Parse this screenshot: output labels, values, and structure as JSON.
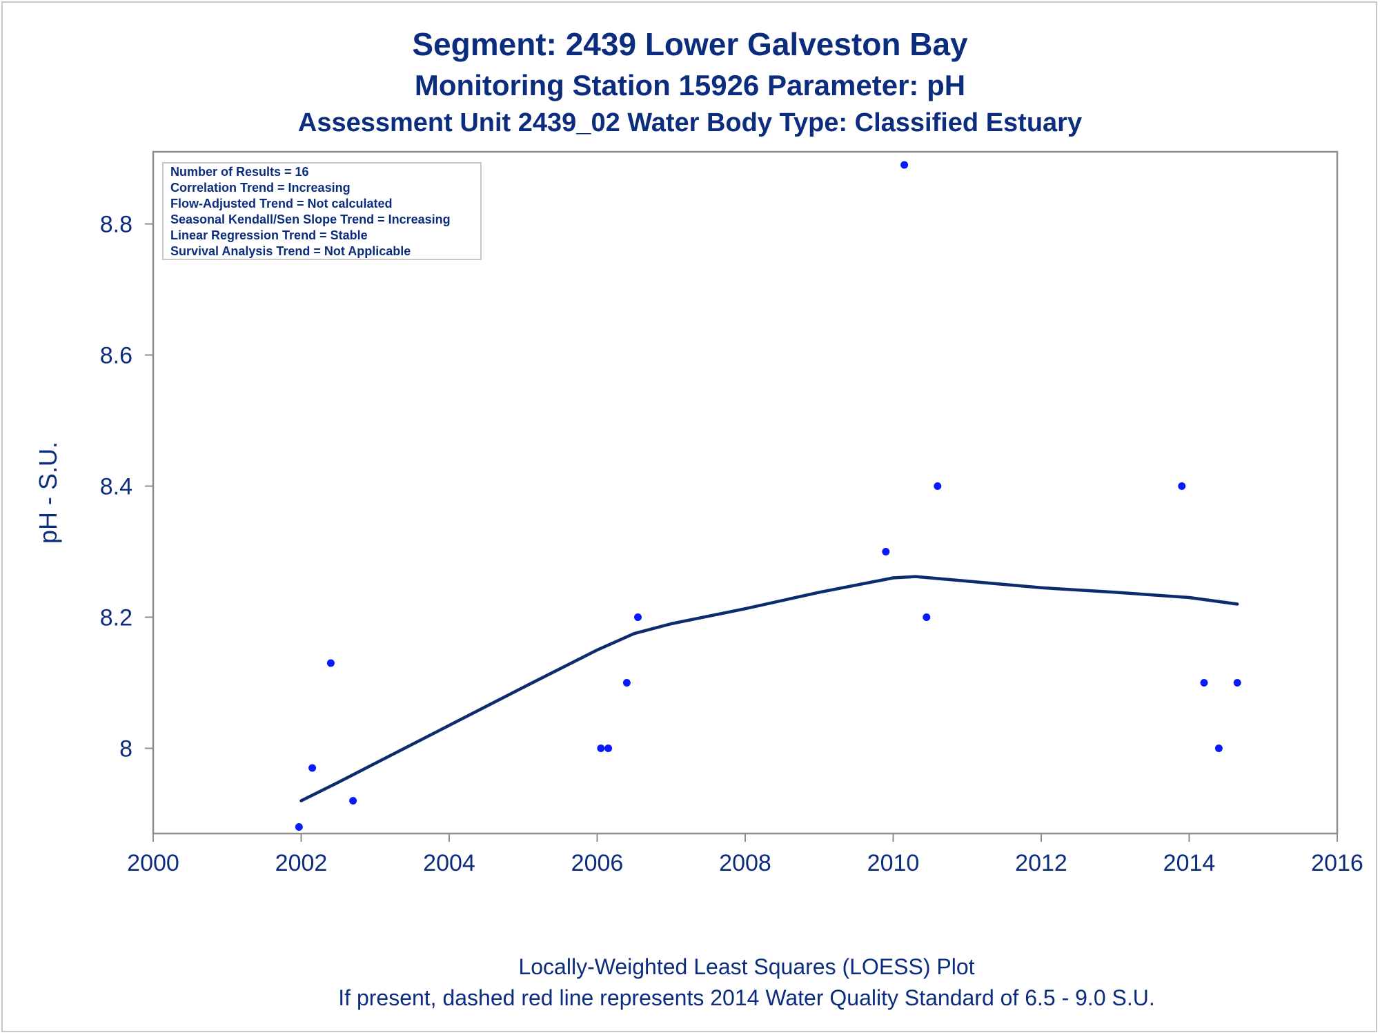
{
  "titles": {
    "line1": "Segment: 2439  Lower Galveston Bay",
    "line2": "Monitoring Station 15926 Parameter: pH",
    "line3": "Assessment Unit 2439_02   Water Body Type: Classified Estuary"
  },
  "stats_box": [
    "Number of Results = 16",
    "Correlation Trend = Increasing",
    "Flow-Adjusted Trend = Not calculated",
    "Seasonal Kendall/Sen Slope Trend = Increasing",
    "Linear Regression Trend = Stable",
    "Survival Analysis Trend = Not Applicable"
  ],
  "footnotes": [
    "Locally-Weighted Least Squares (LOESS) Plot",
    "If present, dashed red line represents 2014 Water Quality Standard of 6.5 - 9.0 S.U."
  ],
  "colors": {
    "title": "#0c2c7e",
    "axis_text": "#0c2c7e",
    "points": "#0a1aff",
    "loess": "#0c2c6e",
    "frame": "#8c8c8c",
    "footnote": "#0c2c7e"
  },
  "chart_data": {
    "type": "scatter",
    "xlabel": "",
    "ylabel": "pH - S.U.",
    "xlim": [
      2000,
      2016
    ],
    "ylim": [
      7.87,
      8.91
    ],
    "x_ticks": [
      2000,
      2002,
      2004,
      2006,
      2008,
      2010,
      2012,
      2014,
      2016
    ],
    "y_ticks": [
      8.0,
      8.2,
      8.4,
      8.6,
      8.8
    ],
    "x_tick_labels": [
      "2000",
      "2002",
      "2004",
      "2006",
      "2008",
      "2010",
      "2012",
      "2014",
      "2016"
    ],
    "y_tick_labels": [
      "8",
      "8.2",
      "8.4",
      "8.6",
      "8.8"
    ],
    "grid": false,
    "legend": "none",
    "series": [
      {
        "type": "scatter",
        "x": [
          2001.97,
          2002.15,
          2002.4,
          2002.7,
          2006.05,
          2006.15,
          2006.4,
          2006.55,
          2009.9,
          2010.15,
          2010.45,
          2010.6,
          2013.9,
          2014.2,
          2014.4,
          2014.65
        ],
        "y": [
          7.88,
          7.97,
          8.13,
          7.92,
          8.0,
          8.0,
          8.1,
          8.2,
          8.3,
          8.89,
          8.2,
          8.4,
          8.4,
          8.1,
          8.0,
          8.1
        ]
      },
      {
        "type": "line",
        "x": [
          2002.0,
          2002.5,
          2003.0,
          2004.0,
          2005.0,
          2006.0,
          2006.5,
          2007.0,
          2008.0,
          2009.0,
          2010.0,
          2010.3,
          2011.0,
          2012.0,
          2013.0,
          2014.0,
          2014.65
        ],
        "y": [
          7.92,
          7.948,
          7.977,
          8.035,
          8.093,
          8.15,
          8.175,
          8.19,
          8.213,
          8.238,
          8.26,
          8.262,
          8.255,
          8.245,
          8.238,
          8.23,
          8.22
        ]
      }
    ]
  }
}
